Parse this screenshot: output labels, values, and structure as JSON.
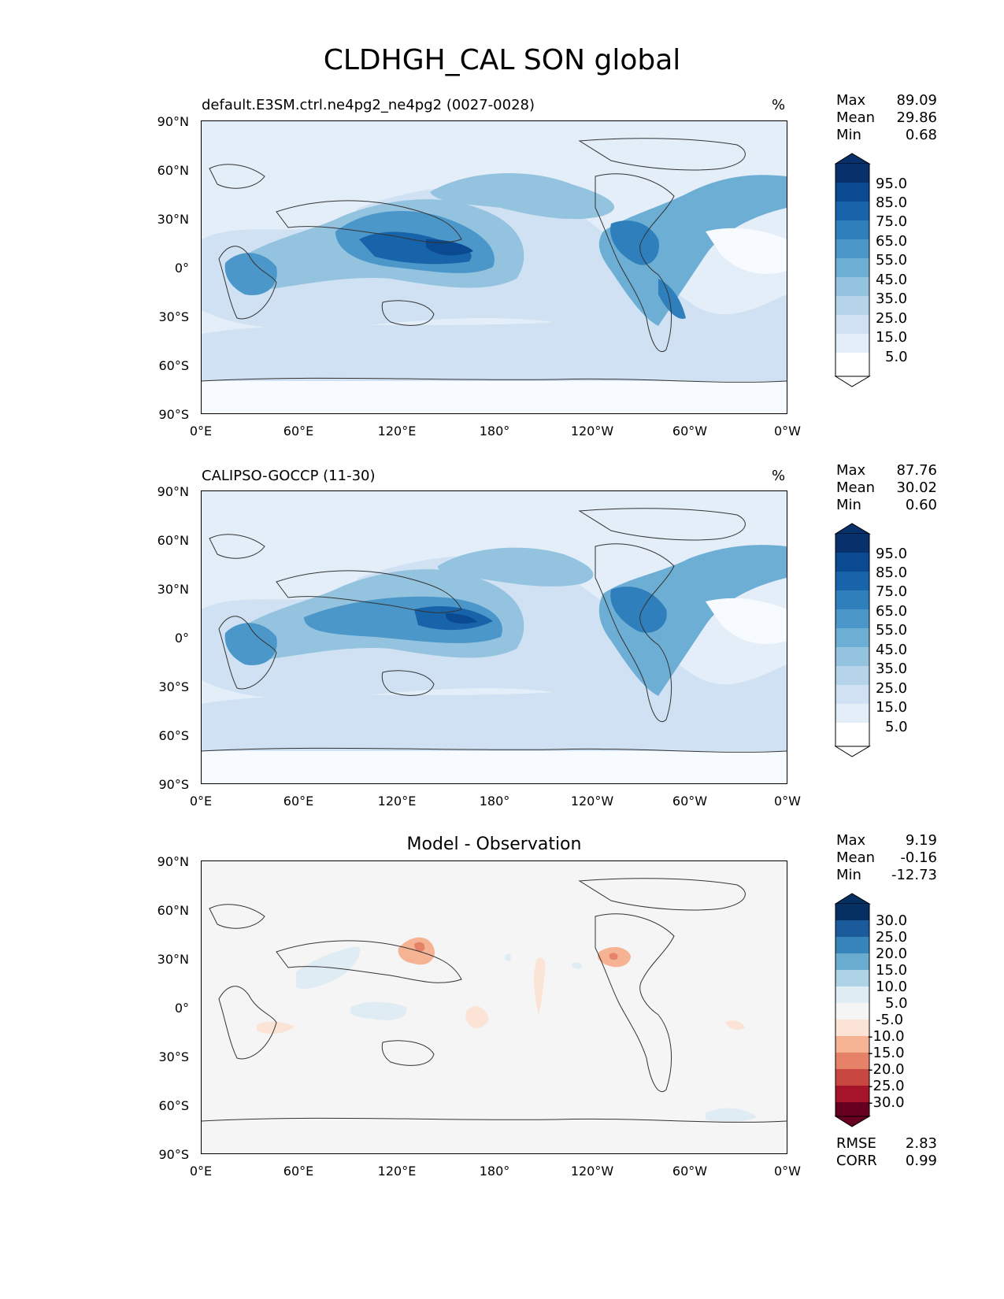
{
  "title": "CLDHGH_CAL SON global",
  "axes": {
    "y_ticks": [
      "90°N",
      "60°N",
      "30°N",
      "0°",
      "30°S",
      "60°S",
      "90°S"
    ],
    "x_ticks": [
      "0°E",
      "60°E",
      "120°E",
      "180°",
      "120°W",
      "60°W",
      "0°W"
    ]
  },
  "panels": [
    {
      "left_title": "default.E3SM.ctrl.ne4pg2_ne4pg2 (0027-0028)",
      "right_title": "%",
      "stats": [
        {
          "label": "Max",
          "value": "89.09"
        },
        {
          "label": "Mean",
          "value": "29.86"
        },
        {
          "label": "Min",
          "value": "0.68"
        }
      ],
      "colorbar_labels": [
        "95.0",
        "85.0",
        "75.0",
        "65.0",
        "55.0",
        "45.0",
        "35.0",
        "25.0",
        "15.0",
        "5.0"
      ]
    },
    {
      "left_title": "CALIPSO-GOCCP (11-30)",
      "right_title": "%",
      "stats": [
        {
          "label": "Max",
          "value": "87.76"
        },
        {
          "label": "Mean",
          "value": "30.02"
        },
        {
          "label": "Min",
          "value": "0.60"
        }
      ],
      "colorbar_labels": [
        "95.0",
        "85.0",
        "75.0",
        "65.0",
        "55.0",
        "45.0",
        "35.0",
        "25.0",
        "15.0",
        "5.0"
      ]
    },
    {
      "center_title": "Model - Observation",
      "stats": [
        {
          "label": "Max",
          "value": "9.19"
        },
        {
          "label": "Mean",
          "value": "-0.16"
        },
        {
          "label": "Min",
          "value": "-12.73"
        }
      ],
      "colorbar_labels": [
        "30.0",
        "25.0",
        "20.0",
        "15.0",
        "10.0",
        "5.0",
        "-5.0",
        "-10.0",
        "-15.0",
        "-20.0",
        "-25.0",
        "-30.0"
      ],
      "metrics": [
        {
          "label": "RMSE",
          "value": "2.83"
        },
        {
          "label": "CORR",
          "value": "0.99"
        }
      ]
    }
  ],
  "colors": {
    "blues": [
      "#f7fbff",
      "#e3eef9",
      "#cfe1f2",
      "#b5d4e9",
      "#93c3df",
      "#6daed5",
      "#4b97c9",
      "#2f7fbc",
      "#1864aa",
      "#0a4a90",
      "#08306b"
    ],
    "diff": [
      "#67001f",
      "#a51429",
      "#c94741",
      "#e58267",
      "#f6b394",
      "#fbe3d6",
      "#f5f5f5",
      "#e0ecf3",
      "#aed3e6",
      "#6aacd0",
      "#3784bb",
      "#1b5a9b",
      "#053061"
    ]
  }
}
